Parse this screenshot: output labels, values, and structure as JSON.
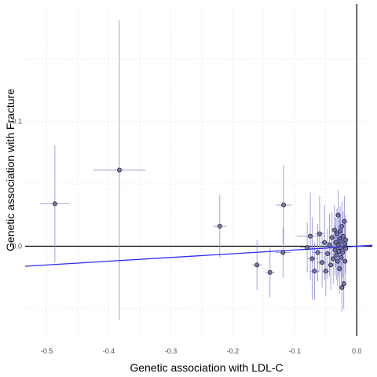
{
  "chart_data": {
    "type": "scatter",
    "xlabel": "Genetic association with LDL-C",
    "ylabel": "Genetic association with Fracture",
    "xlim": [
      -0.535,
      0.025
    ],
    "ylim": [
      -0.072,
      0.194
    ],
    "x_ticks": [
      -0.5,
      -0.4,
      -0.3,
      -0.2,
      -0.1,
      0.0
    ],
    "x_tick_labels": [
      "-0.5",
      "-0.4",
      "-0.3",
      "-0.2",
      "-0.1",
      "0.0"
    ],
    "y_ticks": [
      0.0,
      0.1
    ],
    "y_tick_labels": [
      "0.0",
      "0.1"
    ],
    "grid": true,
    "reference_lines": {
      "horizontal_y": 0.0,
      "vertical_x": 0.0
    },
    "fit_line": {
      "slope": 0.03,
      "intercept": 0.0,
      "color": "#2b2bff"
    },
    "colors": {
      "point_fill": "#6b6b9a",
      "point_stroke": "#222244",
      "error_bar": "#9999dd",
      "grid": "#e4e4e4"
    },
    "points": [
      {
        "x": -0.487,
        "y": 0.034,
        "xerr": 0.024,
        "yerr": 0.047
      },
      {
        "x": -0.383,
        "y": 0.061,
        "xerr": 0.042,
        "yerr": 0.12
      },
      {
        "x": -0.221,
        "y": 0.016,
        "xerr": 0.011,
        "yerr": 0.025
      },
      {
        "x": -0.118,
        "y": 0.033,
        "xerr": 0.013,
        "yerr": 0.032
      },
      {
        "x": -0.161,
        "y": -0.015,
        "xerr": 0.008,
        "yerr": 0.02
      },
      {
        "x": -0.14,
        "y": -0.021,
        "xerr": 0.008,
        "yerr": 0.02
      },
      {
        "x": -0.119,
        "y": -0.005,
        "xerr": 0.012,
        "yerr": 0.02
      },
      {
        "x": -0.08,
        "y": -0.001,
        "xerr": 0.012,
        "yerr": 0.02
      },
      {
        "x": -0.075,
        "y": 0.008,
        "xerr": 0.022,
        "yerr": 0.035
      },
      {
        "x": -0.072,
        "y": -0.01,
        "xerr": 0.008,
        "yerr": 0.033
      },
      {
        "x": -0.068,
        "y": -0.02,
        "xerr": 0.008,
        "yerr": 0.023
      },
      {
        "x": -0.063,
        "y": -0.005,
        "xerr": 0.008,
        "yerr": 0.023
      },
      {
        "x": -0.06,
        "y": 0.01,
        "xerr": 0.007,
        "yerr": 0.03
      },
      {
        "x": -0.056,
        "y": -0.013,
        "xerr": 0.007,
        "yerr": 0.02
      },
      {
        "x": -0.052,
        "y": 0.003,
        "xerr": 0.007,
        "yerr": 0.03
      },
      {
        "x": -0.05,
        "y": -0.02,
        "xerr": 0.006,
        "yerr": 0.02
      },
      {
        "x": -0.047,
        "y": -0.006,
        "xerr": 0.006,
        "yerr": 0.02
      },
      {
        "x": -0.044,
        "y": 0.001,
        "xerr": 0.006,
        "yerr": 0.025
      },
      {
        "x": -0.042,
        "y": -0.015,
        "xerr": 0.006,
        "yerr": 0.02
      },
      {
        "x": -0.04,
        "y": 0.007,
        "xerr": 0.005,
        "yerr": 0.02
      },
      {
        "x": -0.038,
        "y": -0.01,
        "xerr": 0.005,
        "yerr": 0.02
      },
      {
        "x": -0.036,
        "y": 0.013,
        "xerr": 0.005,
        "yerr": 0.02
      },
      {
        "x": -0.035,
        "y": -0.003,
        "xerr": 0.005,
        "yerr": 0.02
      },
      {
        "x": -0.034,
        "y": 0.003,
        "xerr": 0.005,
        "yerr": 0.02
      },
      {
        "x": -0.033,
        "y": -0.007,
        "xerr": 0.005,
        "yerr": 0.02
      },
      {
        "x": -0.032,
        "y": 0.01,
        "xerr": 0.005,
        "yerr": 0.02
      },
      {
        "x": -0.031,
        "y": -0.012,
        "xerr": 0.005,
        "yerr": 0.02
      },
      {
        "x": -0.03,
        "y": 0.025,
        "xerr": 0.005,
        "yerr": 0.02
      },
      {
        "x": -0.03,
        "y": 0.001,
        "xerr": 0.005,
        "yerr": 0.02
      },
      {
        "x": -0.029,
        "y": -0.004,
        "xerr": 0.005,
        "yerr": 0.02
      },
      {
        "x": -0.028,
        "y": 0.006,
        "xerr": 0.005,
        "yerr": 0.02
      },
      {
        "x": -0.028,
        "y": -0.018,
        "xerr": 0.005,
        "yerr": 0.02
      },
      {
        "x": -0.027,
        "y": 0.012,
        "xerr": 0.005,
        "yerr": 0.02
      },
      {
        "x": -0.026,
        "y": -0.001,
        "xerr": 0.005,
        "yerr": 0.02
      },
      {
        "x": -0.026,
        "y": 0.004,
        "xerr": 0.005,
        "yerr": 0.02
      },
      {
        "x": -0.025,
        "y": -0.009,
        "xerr": 0.005,
        "yerr": 0.02
      },
      {
        "x": -0.024,
        "y": -0.033,
        "xerr": 0.005,
        "yerr": 0.02
      },
      {
        "x": -0.024,
        "y": 0.016,
        "xerr": 0.005,
        "yerr": 0.02
      },
      {
        "x": -0.023,
        "y": -0.005,
        "xerr": 0.005,
        "yerr": 0.02
      },
      {
        "x": -0.022,
        "y": 0.008,
        "xerr": 0.005,
        "yerr": 0.02
      },
      {
        "x": -0.021,
        "y": -0.03,
        "xerr": 0.005,
        "yerr": 0.02
      },
      {
        "x": -0.02,
        "y": 0.02,
        "xerr": 0.005,
        "yerr": 0.02
      },
      {
        "x": -0.019,
        "y": 0.002,
        "xerr": 0.005,
        "yerr": 0.02
      },
      {
        "x": -0.019,
        "y": -0.012,
        "xerr": 0.005,
        "yerr": 0.02
      },
      {
        "x": -0.018,
        "y": 0.005,
        "xerr": 0.005,
        "yerr": 0.02
      },
      {
        "x": -0.018,
        "y": -0.002,
        "xerr": 0.005,
        "yerr": 0.02
      }
    ]
  }
}
